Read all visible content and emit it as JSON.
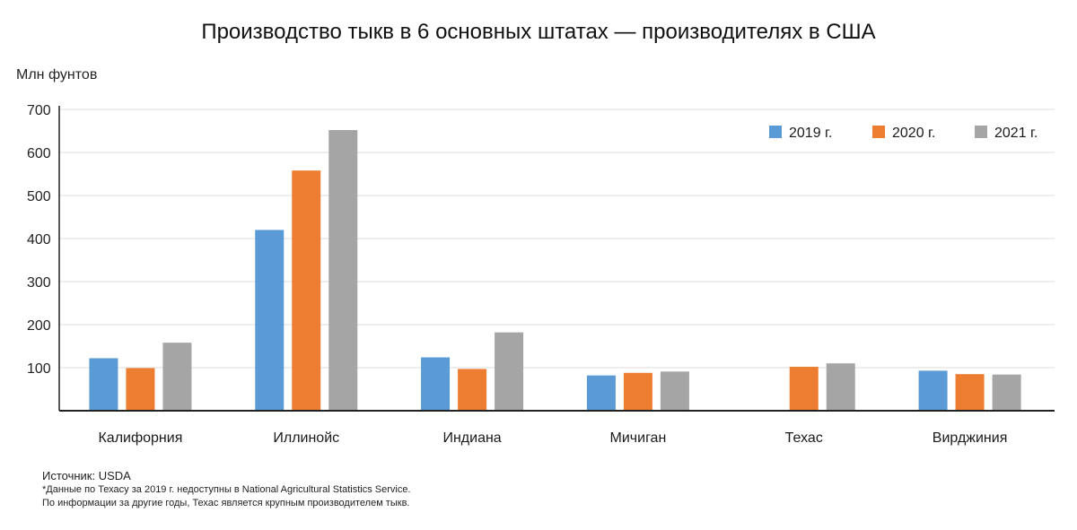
{
  "chart_data": {
    "type": "bar",
    "title": "Производство тыкв в 6 основных штатах — производителях в США",
    "ylabel": "Млн фунтов",
    "xlabel": "",
    "categories": [
      "Калифорния",
      "Иллинойс",
      "Индиана",
      "Мичиган",
      "Техас",
      "Вирджиния"
    ],
    "series": [
      {
        "name": "2019 г.",
        "color": "#5b9bd5",
        "values": [
          122,
          420,
          124,
          82,
          null,
          93
        ]
      },
      {
        "name": "2020 г.",
        "color": "#ed7d31",
        "values": [
          99,
          558,
          97,
          88,
          102,
          85
        ]
      },
      {
        "name": "2021 г.",
        "color": "#a5a5a5",
        "values": [
          158,
          652,
          182,
          91,
          110,
          84
        ]
      }
    ],
    "y_ticks": [
      "100",
      "200",
      "300",
      "400",
      "500",
      "600",
      "700"
    ],
    "ylim": [
      0,
      700
    ],
    "grid": true,
    "legend_position": "top-right"
  },
  "source": "Источник: USDA",
  "notes": [
    "*Данные по Техасу за 2019 г. недоступны в National Agricultural Statistics Service.",
    "По информации за другие годы, Техас является крупным производителем тыкв."
  ]
}
